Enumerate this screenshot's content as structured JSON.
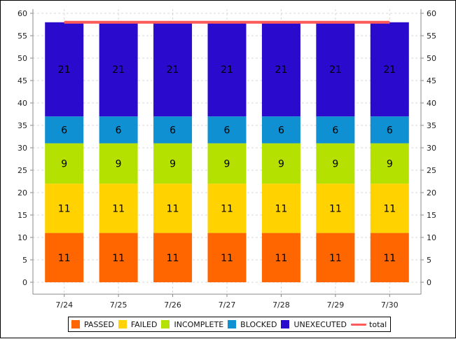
{
  "chart_data": {
    "type": "bar",
    "stacked": true,
    "title": "",
    "xlabel": "",
    "ylabel": "",
    "ylim": [
      0,
      60
    ],
    "yticks": [
      0,
      5,
      10,
      15,
      20,
      25,
      30,
      35,
      40,
      45,
      50,
      55,
      60
    ],
    "grid": true,
    "secondary_y_axis": true,
    "categories": [
      "7/24",
      "7/25",
      "7/26",
      "7/27",
      "7/28",
      "7/29",
      "7/30"
    ],
    "series": [
      {
        "name": "PASSED",
        "color": "#ff6600",
        "values": [
          11,
          11,
          11,
          11,
          11,
          11,
          11
        ]
      },
      {
        "name": "FAILED",
        "color": "#ffd200",
        "values": [
          11,
          11,
          11,
          11,
          11,
          11,
          11
        ]
      },
      {
        "name": "INCOMPLETE",
        "color": "#b4e100",
        "values": [
          9,
          9,
          9,
          9,
          9,
          9,
          9
        ]
      },
      {
        "name": "BLOCKED",
        "color": "#0e90d2",
        "values": [
          6,
          6,
          6,
          6,
          6,
          6,
          6
        ]
      },
      {
        "name": "UNEXECUTED",
        "color": "#2a0acd",
        "values": [
          21,
          21,
          21,
          21,
          21,
          21,
          21
        ]
      }
    ],
    "lines": [
      {
        "name": "total",
        "color": "#ff5a5a",
        "values": [
          58,
          58,
          58,
          58,
          58,
          58,
          58
        ]
      }
    ],
    "legend_position": "bottom-center"
  }
}
